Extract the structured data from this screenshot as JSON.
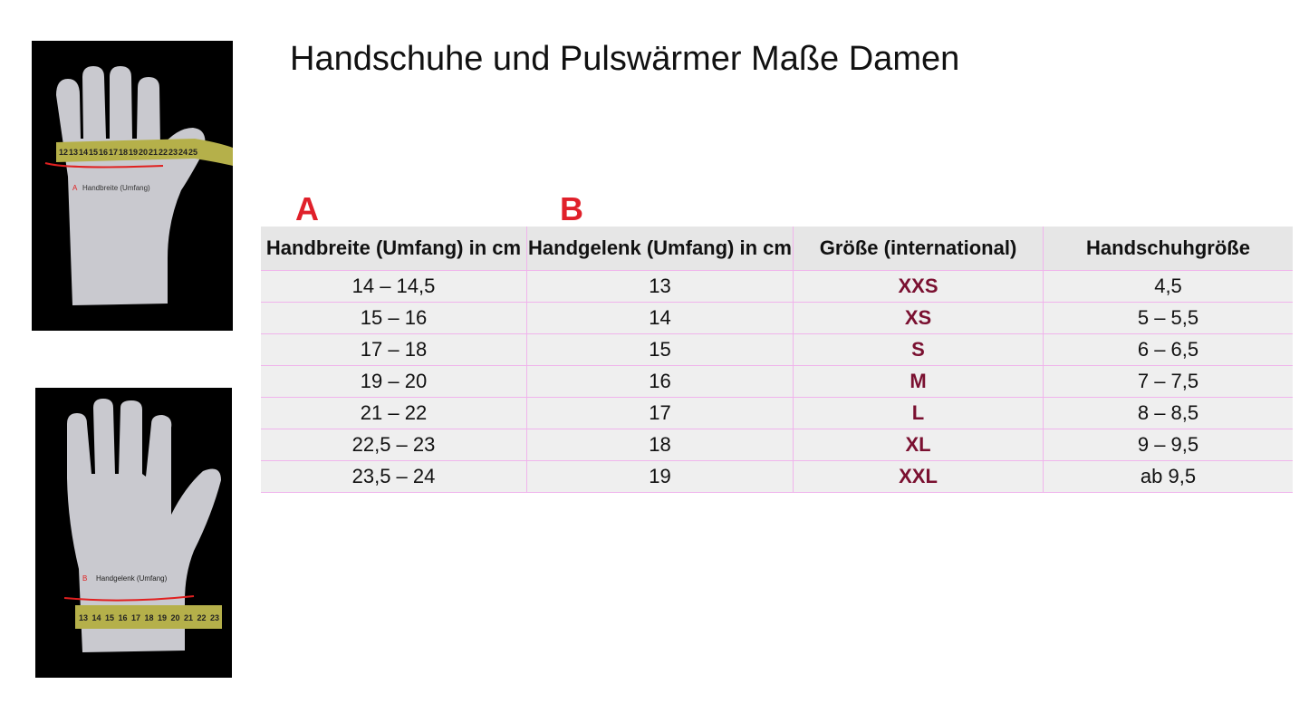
{
  "title": "Handschuhe und Pulswärmer Maße Damen",
  "photos": [
    {
      "label_letter": "A",
      "label": "Handbreite (Umfang)",
      "tape_numbers": [
        "12",
        "13",
        "14",
        "15",
        "16",
        "17",
        "18",
        "19",
        "20",
        "21",
        "22",
        "23",
        "24",
        "25"
      ]
    },
    {
      "label_letter": "B",
      "label": "Handgelenk (Umfang)",
      "tape_numbers": [
        "13",
        "14",
        "15",
        "16",
        "17",
        "18",
        "19",
        "20",
        "21",
        "22",
        "23"
      ]
    }
  ],
  "column_letters": [
    "A",
    "B"
  ],
  "table": {
    "headers": [
      "Handbreite (Umfang) in cm",
      "Handgelenk (Umfang) in cm",
      "Größe (international)",
      "Handschuhgröße"
    ],
    "rows": [
      [
        "14 – 14,5",
        "13",
        "XXS",
        "4,5"
      ],
      [
        "15 – 16",
        "14",
        "XS",
        "5 – 5,5"
      ],
      [
        "17 – 18",
        "15",
        "S",
        "6 – 6,5"
      ],
      [
        "19 – 20",
        "16",
        "M",
        "7 – 7,5"
      ],
      [
        "21 – 22",
        "17",
        "L",
        "8 – 8,5"
      ],
      [
        "22,5 – 23",
        "18",
        "XL",
        "9 – 9,5"
      ],
      [
        "23,5 – 24",
        "19",
        "XXL",
        "ab 9,5"
      ]
    ]
  },
  "colors": {
    "size_text": "#7a1030",
    "letter": "#e0202a",
    "grid": "#f0b4ec"
  }
}
